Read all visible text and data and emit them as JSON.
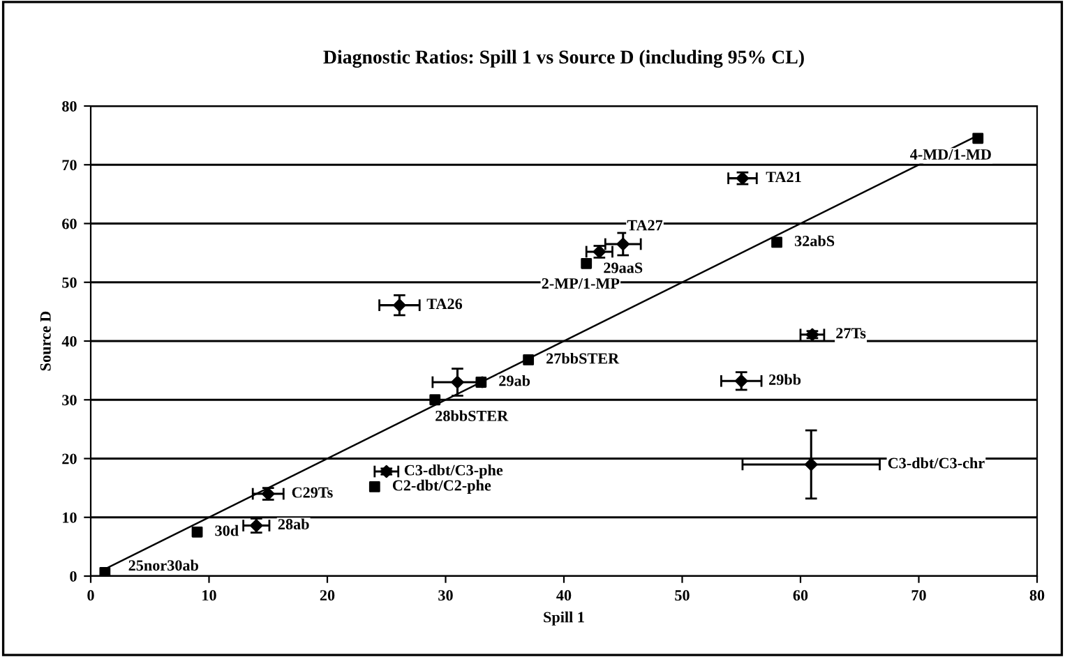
{
  "chart_data": {
    "type": "scatter",
    "title": "Diagnostic Ratios: Spill 1 vs Source D (including 95% CL)",
    "xlabel": "Spill 1",
    "ylabel": "Source D",
    "xlim": [
      0,
      80
    ],
    "xticks": [
      0,
      10,
      20,
      30,
      40,
      50,
      60,
      70,
      80
    ],
    "ylim": [
      0,
      80
    ],
    "yticks": [
      0,
      10,
      20,
      30,
      40,
      50,
      60,
      70,
      80
    ],
    "grid": "y",
    "series": [
      {
        "marker": "square",
        "color": "#000000",
        "x": [
          75,
          41.9,
          58,
          37,
          33,
          29.1,
          24,
          9,
          1.2
        ],
        "values": [
          74.5,
          53.2,
          56.8,
          36.8,
          33,
          30,
          15.2,
          7.5,
          0.6
        ]
      },
      {
        "marker": "diamond",
        "color": "#000000",
        "x": [
          55.1,
          45,
          43,
          26.1,
          61,
          55,
          60.9,
          31,
          15,
          14,
          25
        ],
        "values": [
          67.7,
          56.5,
          55.2,
          46.1,
          41.1,
          33.2,
          19,
          33,
          14,
          8.6,
          17.8
        ],
        "xerrors": [
          1.2,
          1.5,
          1.1,
          1.7,
          1,
          1.7,
          5.8,
          2.1,
          1.3,
          1.1,
          1
        ],
        "errors": [
          1,
          1.9,
          1,
          1.7,
          0.6,
          1.5,
          5.8,
          2.3,
          1,
          1.2,
          0.5
        ]
      },
      {
        "type": "line",
        "color": "#000000",
        "x": [
          1,
          75
        ],
        "values": [
          1,
          75
        ]
      }
    ],
    "annotations": [
      {
        "text": "4-MD/1-MD",
        "x": 75,
        "y": 74.5
      },
      {
        "text": "TA21",
        "x": 55.1,
        "y": 67.7
      },
      {
        "text": "TA27",
        "x": 45,
        "y": 56.5
      },
      {
        "text": "29aaS",
        "x": 43,
        "y": 55.2
      },
      {
        "text": "2-MP/1-MP",
        "x": 41.9,
        "y": 53.2
      },
      {
        "text": "32abS",
        "x": 58,
        "y": 56.8
      },
      {
        "text": "TA26",
        "x": 26.1,
        "y": 46.1
      },
      {
        "text": "27Ts",
        "x": 61,
        "y": 41.1
      },
      {
        "text": "27bbSTER",
        "x": 37,
        "y": 36.8
      },
      {
        "text": "29ab",
        "x": 33,
        "y": 33
      },
      {
        "text": "28bbSTER",
        "x": 29.1,
        "y": 30
      },
      {
        "text": "29bb",
        "x": 55,
        "y": 33.2
      },
      {
        "text": "C3-dbt/C3-phe",
        "x": 25,
        "y": 17.8
      },
      {
        "text": "C2-dbt/C2-phe",
        "x": 24,
        "y": 15.2
      },
      {
        "text": "C3-dbt/C3-chr",
        "x": 66.7,
        "y": 19
      },
      {
        "text": "C29Ts",
        "x": 15,
        "y": 14
      },
      {
        "text": "30d",
        "x": 9,
        "y": 7.5
      },
      {
        "text": "28ab",
        "x": 14,
        "y": 8.6
      },
      {
        "text": "25nor30ab",
        "x": 1.2,
        "y": 0.6
      }
    ]
  }
}
